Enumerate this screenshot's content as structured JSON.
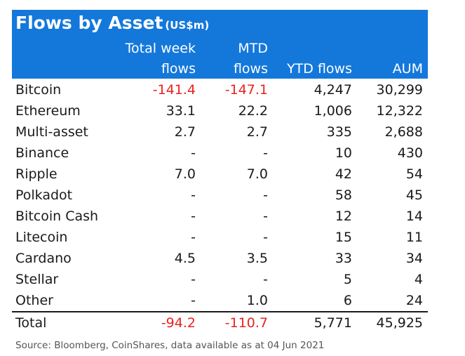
{
  "chart_data": {
    "type": "table",
    "title": "Flows by Asset",
    "title_unit": "(US$m)",
    "columns": [
      {
        "line1": "Total week",
        "line2": "flows"
      },
      {
        "line1": "MTD",
        "line2": "flows"
      },
      {
        "line1": "",
        "line2": "YTD flows"
      },
      {
        "line1": "",
        "line2": "AUM"
      }
    ],
    "rows": [
      {
        "name": "Bitcoin",
        "week": "-141.4",
        "mtd": "-147.1",
        "ytd": "4,247",
        "aum": "30,299"
      },
      {
        "name": "Ethereum",
        "week": "33.1",
        "mtd": "22.2",
        "ytd": "1,006",
        "aum": "12,322"
      },
      {
        "name": "Multi-asset",
        "week": "2.7",
        "mtd": "2.7",
        "ytd": "335",
        "aum": "2,688"
      },
      {
        "name": "Binance",
        "week": "-",
        "mtd": "-",
        "ytd": "10",
        "aum": "430"
      },
      {
        "name": "Ripple",
        "week": "7.0",
        "mtd": "7.0",
        "ytd": "42",
        "aum": "54"
      },
      {
        "name": "Polkadot",
        "week": "-",
        "mtd": "-",
        "ytd": "58",
        "aum": "45"
      },
      {
        "name": "Bitcoin Cash",
        "week": "-",
        "mtd": "-",
        "ytd": "12",
        "aum": "14"
      },
      {
        "name": "Litecoin",
        "week": "-",
        "mtd": "-",
        "ytd": "15",
        "aum": "11"
      },
      {
        "name": "Cardano",
        "week": "4.5",
        "mtd": "3.5",
        "ytd": "33",
        "aum": "34"
      },
      {
        "name": "Stellar",
        "week": "-",
        "mtd": "-",
        "ytd": "5",
        "aum": "4"
      },
      {
        "name": "Other",
        "week": "-",
        "mtd": "1.0",
        "ytd": "6",
        "aum": "24"
      }
    ],
    "total": {
      "name": "Total",
      "week": "-94.2",
      "mtd": "-110.7",
      "ytd": "5,771",
      "aum": "45,925"
    },
    "source": "Source: Bloomberg, CoinShares, data available as at 04 Jun 2021",
    "colors": {
      "header_bg": "#1478db",
      "header_text": "#ffffff",
      "negative": "#e8231f"
    }
  }
}
